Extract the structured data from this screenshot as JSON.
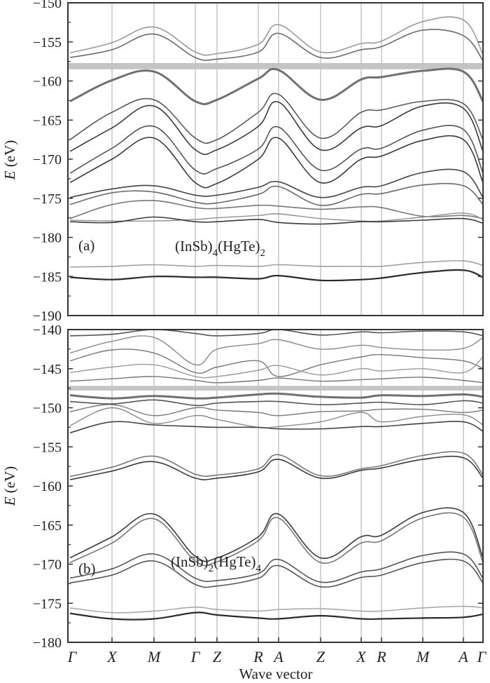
{
  "chart_data": {
    "x_title": "Wave vector",
    "kpoints": [
      "Γ",
      "X",
      "M",
      "Γ",
      "Z",
      "R",
      "A",
      "Z",
      "X",
      "R",
      "M",
      "A",
      "Γ"
    ],
    "panels": [
      {
        "type": "line",
        "label": "(a)",
        "formula": {
          "a": "(InSb)",
          "s1": "4",
          "b": "(HgTe)",
          "s2": "2"
        },
        "ylabel_italic": "E",
        "ylabel_rest": " (eV)",
        "ylim": [
          -190,
          -150
        ],
        "yticks": [
          "-150",
          "-155",
          "-160",
          "-165",
          "-170",
          "-175",
          "-180",
          "-185",
          "-190"
        ],
        "fermi_band": [
          -158.5,
          -157.7
        ],
        "series": [
          {
            "color": "#9a9a9a",
            "width": 1.6,
            "y": [
              -156.4,
              -155.1,
              -153.1,
              -156.3,
              -156.5,
              -155.3,
              -152.8,
              -156.3,
              -155.2,
              -154.9,
              -152.4,
              -152.2,
              -156.6
            ]
          },
          {
            "color": "#6a6a6a",
            "width": 1.6,
            "y": [
              -157.0,
              -156.0,
              -154.0,
              -157.0,
              -157.2,
              -156.3,
              -153.9,
              -157.0,
              -156.0,
              -155.6,
              -153.5,
              -154.2,
              -157.4
            ]
          },
          {
            "color": "#707070",
            "width": 3.0,
            "y": [
              -162.6,
              -159.9,
              -158.8,
              -162.6,
              -162.4,
              -159.7,
              -158.6,
              -162.4,
              -159.8,
              -159.5,
              -158.7,
              -158.8,
              -162.6
            ]
          },
          {
            "color": "#5a5a5a",
            "width": 1.6,
            "y": [
              -167.5,
              -164.0,
              -162.4,
              -167.3,
              -167.5,
              -164.0,
              -161.7,
              -167.3,
              -164.0,
              -163.7,
              -162.6,
              -162.9,
              -167.5
            ]
          },
          {
            "color": "#3a3a3a",
            "width": 1.6,
            "y": [
              -169.0,
              -166.0,
              -163.2,
              -168.8,
              -168.8,
              -165.8,
              -162.7,
              -168.8,
              -166.0,
              -165.7,
              -163.2,
              -163.5,
              -169.0
            ]
          },
          {
            "color": "#555555",
            "width": 1.6,
            "y": [
              -171.8,
              -168.6,
              -165.8,
              -171.4,
              -171.2,
              -168.7,
              -165.9,
              -171.4,
              -168.7,
              -168.6,
              -166.3,
              -166.2,
              -171.8
            ]
          },
          {
            "color": "#3a3a3a",
            "width": 1.6,
            "y": [
              -173.0,
              -170.0,
              -167.3,
              -173.0,
              -173.1,
              -170.0,
              -167.3,
              -173.0,
              -170.0,
              -169.6,
              -167.6,
              -167.5,
              -173.0
            ]
          },
          {
            "color": "#444444",
            "width": 1.6,
            "y": [
              -174.9,
              -173.8,
              -173.4,
              -174.6,
              -174.6,
              -173.6,
              -172.9,
              -174.9,
              -173.6,
              -173.4,
              -171.7,
              -171.6,
              -174.9
            ]
          },
          {
            "color": "#6a6a6a",
            "width": 1.6,
            "y": [
              -175.8,
              -174.3,
              -174.2,
              -175.5,
              -175.6,
              -174.5,
              -173.5,
              -175.9,
              -174.5,
              -174.4,
              -173.3,
              -173.4,
              -175.8
            ]
          },
          {
            "color": "#777777",
            "width": 1.6,
            "y": [
              -177.6,
              -175.8,
              -175.3,
              -176.2,
              -176.3,
              -175.9,
              -176.0,
              -176.4,
              -176.1,
              -176.2,
              -177.3,
              -177.2,
              -177.6
            ]
          },
          {
            "color": "#909090",
            "width": 1.4,
            "y": [
              -177.8,
              -177.9,
              -177.9,
              -177.7,
              -177.5,
              -177.2,
              -177.0,
              -177.6,
              -177.9,
              -177.9,
              -177.4,
              -176.9,
              -177.7
            ]
          },
          {
            "color": "#3a3a3a",
            "width": 1.6,
            "y": [
              -178.0,
              -178.1,
              -177.4,
              -178.0,
              -178.0,
              -177.7,
              -178.1,
              -178.3,
              -178.0,
              -178.0,
              -177.8,
              -177.6,
              -178.2
            ]
          },
          {
            "color": "#a0a0a0",
            "width": 1.6,
            "y": [
              -183.8,
              -183.7,
              -183.5,
              -183.7,
              -183.6,
              -183.7,
              -183.5,
              -183.7,
              -183.7,
              -183.7,
              -183.2,
              -183.0,
              -183.6
            ]
          },
          {
            "color": "#2a2a2a",
            "width": 2.2,
            "y": [
              -185.1,
              -185.4,
              -185.0,
              -185.1,
              -185.1,
              -185.3,
              -184.9,
              -185.5,
              -185.4,
              -185.2,
              -184.5,
              -184.2,
              -185.1
            ]
          }
        ]
      },
      {
        "type": "line",
        "label": "(b)",
        "formula": {
          "a": "(InSb)",
          "s1": "2",
          "b": "(HgTe)",
          "s2": "4"
        },
        "ylabel_italic": "E",
        "ylabel_rest": " (eV)",
        "ylim": [
          -180,
          -140
        ],
        "yticks": [
          "-140",
          "-145",
          "-150",
          "-155",
          "-160",
          "-165",
          "-170",
          "-175",
          "-180"
        ],
        "fermi_band": [
          -147.8,
          -147.2
        ],
        "series": [
          {
            "color": "#555555",
            "width": 1.6,
            "y": [
              -140.8,
              -140.6,
              -140.0,
              -140.5,
              -140.8,
              -140.5,
              -140.0,
              -140.7,
              -140.3,
              -140.4,
              -140.2,
              -140.3,
              -140.8
            ]
          },
          {
            "color": "#8a8a8a",
            "width": 1.4,
            "y": [
              -143.0,
              -141.5,
              -141.0,
              -144.5,
              -142.5,
              -141.8,
              -141.3,
              -142.5,
              -142.0,
              -142.3,
              -142.6,
              -142.4,
              -141.0
            ]
          },
          {
            "color": "#777777",
            "width": 1.4,
            "y": [
              -144.0,
              -142.6,
              -143.0,
              -145.5,
              -144.8,
              -144.0,
              -146.0,
              -144.5,
              -143.5,
              -143.2,
              -143.6,
              -144.0,
              -145.0
            ]
          },
          {
            "color": "#9a9a9a",
            "width": 1.4,
            "y": [
              -145.5,
              -144.8,
              -144.5,
              -146.0,
              -146.0,
              -145.2,
              -144.6,
              -145.8,
              -145.0,
              -145.3,
              -145.0,
              -145.5,
              -143.5
            ]
          },
          {
            "color": "#777777",
            "width": 1.4,
            "y": [
              -146.6,
              -146.3,
              -146.0,
              -146.5,
              -146.8,
              -146.5,
              -146.2,
              -146.6,
              -146.4,
              -146.3,
              -146.1,
              -146.5,
              -146.8
            ]
          },
          {
            "color": "#707070",
            "width": 3.0,
            "y": [
              -148.4,
              -148.8,
              -148.5,
              -148.8,
              -148.7,
              -148.3,
              -148.2,
              -148.6,
              -148.7,
              -148.4,
              -148.5,
              -148.3,
              -148.6
            ]
          },
          {
            "color": "#555555",
            "width": 1.6,
            "y": [
              -149.2,
              -149.5,
              -149.0,
              -149.7,
              -149.4,
              -149.2,
              -149.2,
              -149.6,
              -149.4,
              -149.3,
              -149.6,
              -149.1,
              -149.4
            ]
          },
          {
            "color": "#777777",
            "width": 1.4,
            "y": [
              -150.5,
              -149.6,
              -151.0,
              -150.0,
              -150.3,
              -150.6,
              -151.0,
              -150.5,
              -150.4,
              -150.2,
              -150.2,
              -150.6,
              -150.3
            ]
          },
          {
            "color": "#8a8a8a",
            "width": 1.4,
            "y": [
              -152.3,
              -150.0,
              -152.0,
              -151.0,
              -151.5,
              -152.5,
              -152.4,
              -151.8,
              -150.6,
              -151.8,
              -151.1,
              -150.9,
              -152.2
            ]
          },
          {
            "color": "#444444",
            "width": 1.6,
            "y": [
              -153.2,
              -151.8,
              -152.2,
              -152.4,
              -152.5,
              -152.5,
              -152.7,
              -152.7,
              -152.4,
              -152.4,
              -152.0,
              -151.8,
              -153.0
            ]
          },
          {
            "color": "#777777",
            "width": 1.6,
            "y": [
              -158.8,
              -157.6,
              -156.2,
              -158.5,
              -158.6,
              -157.8,
              -156.0,
              -158.7,
              -157.8,
              -157.4,
              -156.1,
              -155.8,
              -158.6
            ]
          },
          {
            "color": "#3a3a3a",
            "width": 1.6,
            "y": [
              -159.2,
              -158.1,
              -156.9,
              -159.0,
              -159.0,
              -158.2,
              -156.6,
              -159.0,
              -158.0,
              -157.7,
              -156.6,
              -156.4,
              -159.0
            ]
          },
          {
            "color": "#3a3a3a",
            "width": 1.6,
            "y": [
              -169.2,
              -166.5,
              -163.6,
              -169.0,
              -169.2,
              -166.5,
              -163.6,
              -169.2,
              -166.5,
              -166.3,
              -163.4,
              -163.4,
              -169.2
            ]
          },
          {
            "color": "#777777",
            "width": 1.6,
            "y": [
              -169.8,
              -167.3,
              -164.2,
              -169.6,
              -169.7,
              -167.0,
              -164.1,
              -169.8,
              -167.3,
              -167.0,
              -164.1,
              -164.0,
              -169.8
            ]
          },
          {
            "color": "#555555",
            "width": 1.6,
            "y": [
              -171.8,
              -170.6,
              -168.7,
              -171.8,
              -172.1,
              -171.2,
              -169.4,
              -172.3,
              -171.0,
              -170.6,
              -168.9,
              -168.7,
              -171.8
            ]
          },
          {
            "color": "#555555",
            "width": 1.6,
            "y": [
              -172.4,
              -171.4,
              -169.6,
              -172.6,
              -172.8,
              -171.8,
              -170.2,
              -172.9,
              -171.7,
              -171.4,
              -169.8,
              -169.6,
              -172.4
            ]
          },
          {
            "color": "#aaaaaa",
            "width": 1.6,
            "y": [
              -175.6,
              -176.2,
              -176.0,
              -175.5,
              -175.8,
              -176.0,
              -175.8,
              -175.7,
              -176.0,
              -176.0,
              -175.6,
              -175.4,
              -175.6
            ]
          },
          {
            "color": "#2a2a2a",
            "width": 2.2,
            "y": [
              -176.3,
              -177.0,
              -177.0,
              -176.2,
              -176.5,
              -176.9,
              -177.0,
              -176.6,
              -177.0,
              -177.0,
              -176.9,
              -176.8,
              -176.4
            ]
          }
        ]
      }
    ]
  }
}
